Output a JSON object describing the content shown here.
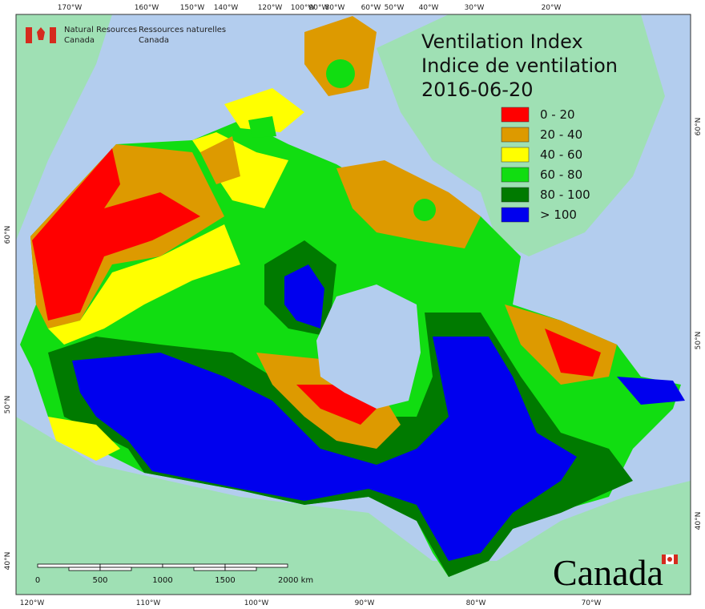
{
  "header": {
    "agency_en": [
      "Natural Resources",
      "Canada"
    ],
    "agency_fr": [
      "Ressources naturelles",
      "Canada"
    ]
  },
  "title": {
    "line1": "Ventilation Index",
    "line2": "Indice de ventilation",
    "date": "2016-06-20"
  },
  "legend": [
    {
      "label": "0 - 20",
      "color": "#ff0000"
    },
    {
      "label": "20 - 40",
      "color": "#dd9a00"
    },
    {
      "label": "40 - 60",
      "color": "#ffff00"
    },
    {
      "label": "60 - 80",
      "color": "#11dd11"
    },
    {
      "label": "80 - 100",
      "color": "#007a00"
    },
    {
      "label": "> 100",
      "color": "#0000ee"
    }
  ],
  "graticule": {
    "top": [
      "170°W",
      "160°W",
      "150°W",
      "140°W",
      "120°W",
      "100°W",
      "90°W",
      "80°W",
      "60°W",
      "50°W",
      "40°W",
      "30°W",
      "20°W"
    ],
    "bottom": [
      "120°W",
      "110°W",
      "100°W",
      "90°W",
      "80°W",
      "70°W"
    ],
    "left": [
      "60°N",
      "50°N",
      "40°N"
    ],
    "right": [
      "60°N",
      "50°N",
      "40°N"
    ]
  },
  "scale_bar": [
    "0",
    "500",
    "1000",
    "1500",
    "2000 km"
  ],
  "wordmark": "Canada"
}
